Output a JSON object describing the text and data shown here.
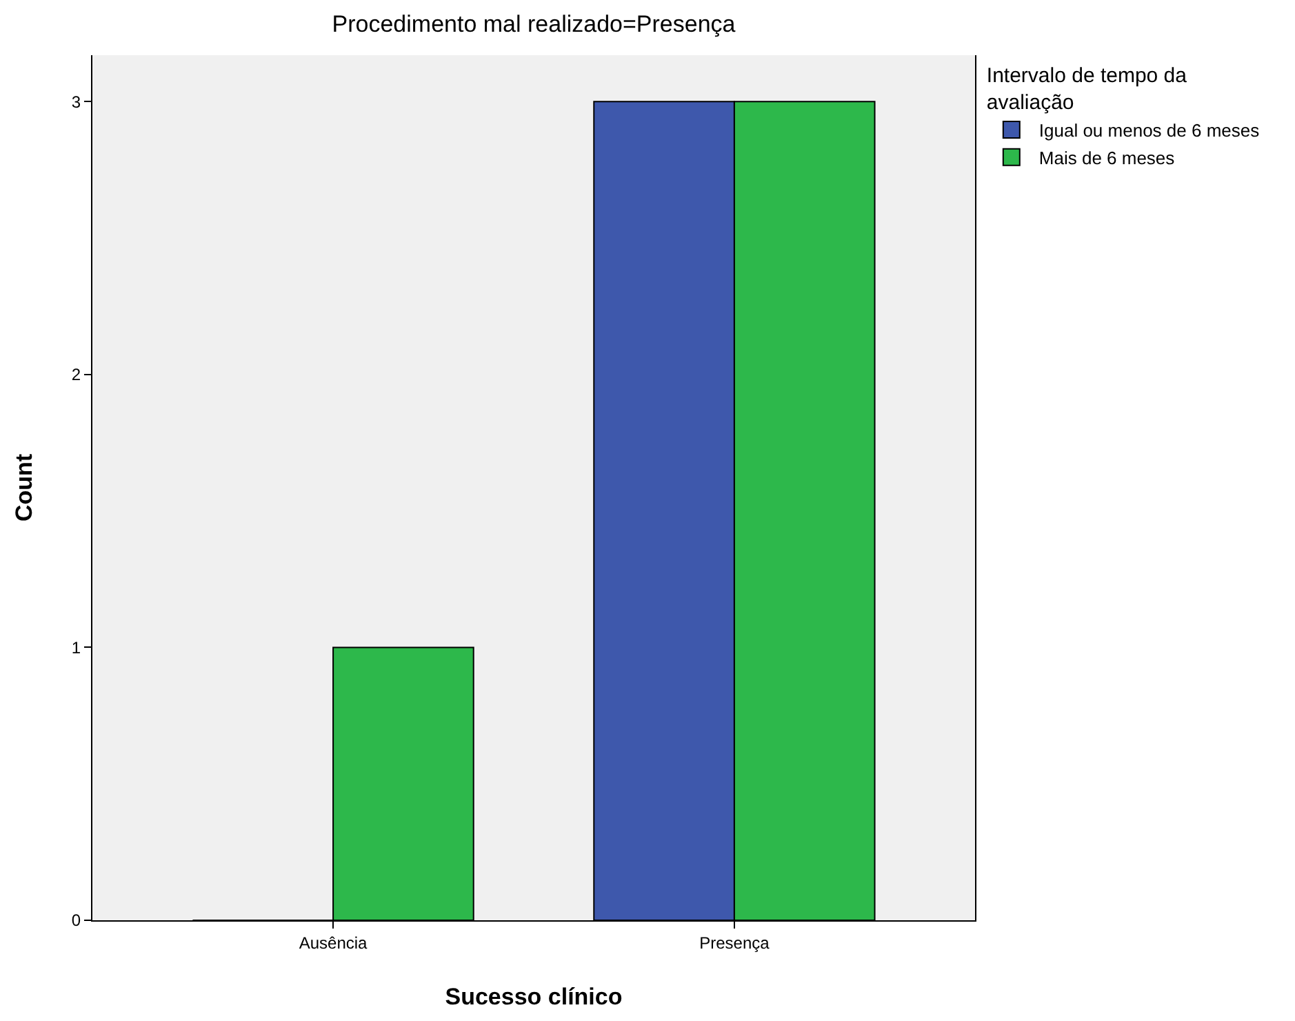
{
  "chart_data": {
    "type": "bar",
    "title": "Procedimento mal realizado=Presença",
    "xlabel": "Sucesso clínico",
    "ylabel": "Count",
    "legend_title": "Intervalo de tempo da avaliação",
    "categories": [
      "Ausência",
      "Presença"
    ],
    "series": [
      {
        "name": "Igual ou menos de 6 meses",
        "color": "#3e58ac",
        "values": [
          0,
          3
        ]
      },
      {
        "name": "Mais de 6 meses",
        "color": "#2db84b",
        "values": [
          1,
          3
        ]
      }
    ],
    "ylim": [
      0,
      3.17
    ],
    "yticks": [
      0,
      1,
      2,
      3
    ],
    "grid": false,
    "legend": "top right"
  }
}
